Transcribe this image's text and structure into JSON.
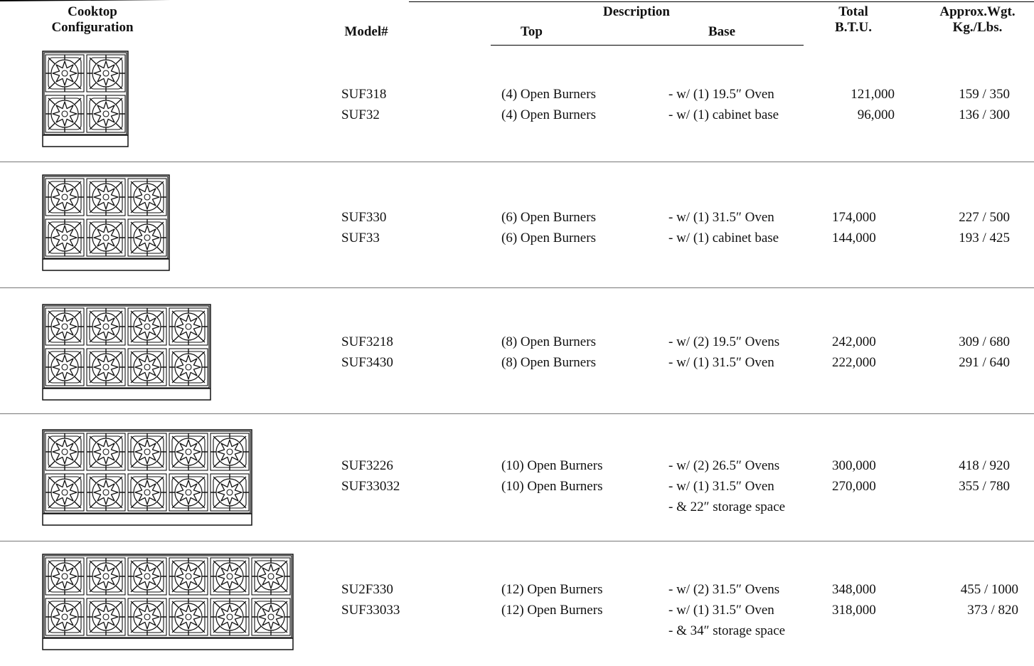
{
  "headers": {
    "configuration": [
      "Cooktop",
      "Configuration"
    ],
    "model": "Model#",
    "description": "Description",
    "top": "Top",
    "base": "Base",
    "btu": [
      "Total",
      "B.T.U."
    ],
    "weight": [
      "Approx.Wgt.",
      "Kg./Lbs."
    ]
  },
  "rows": [
    {
      "burners": 4,
      "models": [
        "SUF318",
        "SUF32"
      ],
      "top": [
        "(4) Open Burners",
        "(4) Open Burners"
      ],
      "base": [
        "- w/ (1) 19.5″ Oven",
        "- w/ (1) cabinet base"
      ],
      "btu": [
        "121,000",
        "96,000"
      ],
      "weight": [
        "159 / 350",
        "136 / 300"
      ]
    },
    {
      "burners": 6,
      "models": [
        "SUF330",
        "SUF33"
      ],
      "top": [
        "(6) Open Burners",
        "(6) Open Burners"
      ],
      "base": [
        "- w/ (1) 31.5″ Oven",
        "- w/ (1) cabinet base"
      ],
      "btu": [
        "174,000",
        "144,000"
      ],
      "weight": [
        "227 / 500",
        "193 / 425"
      ]
    },
    {
      "burners": 8,
      "models": [
        "SUF3218",
        "SUF3430"
      ],
      "top": [
        "(8) Open Burners",
        "(8) Open Burners"
      ],
      "base": [
        "- w/ (2) 19.5″ Ovens",
        "- w/ (1) 31.5″ Oven"
      ],
      "btu": [
        "242,000",
        "222,000"
      ],
      "weight": [
        "309 / 680",
        "291 / 640"
      ]
    },
    {
      "burners": 10,
      "models": [
        "SUF3226",
        "SUF33032"
      ],
      "top": [
        "(10) Open Burners",
        "(10) Open Burners"
      ],
      "base": [
        "- w/ (2) 26.5″ Ovens",
        "- w/ (1) 31.5″ Oven",
        "- & 22″ storage space"
      ],
      "btu": [
        "300,000",
        "270,000"
      ],
      "weight": [
        "418 / 920",
        "355 / 780"
      ]
    },
    {
      "burners": 12,
      "models": [
        "SU2F330",
        "SUF33033"
      ],
      "top": [
        "(12) Open Burners",
        "(12) Open Burners"
      ],
      "base": [
        "- w/ (2) 31.5″ Ovens",
        "- w/ (1) 31.5″ Oven",
        "- & 34″ storage space"
      ],
      "btu": [
        "348,000",
        "318,000"
      ],
      "weight": [
        "455 / 1000",
        "373 / 820"
      ]
    }
  ]
}
